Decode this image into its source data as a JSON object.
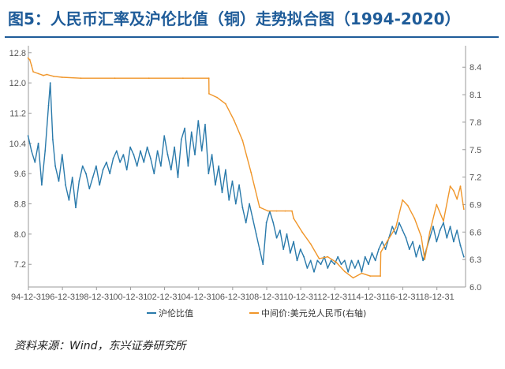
{
  "title": "图5：人民币汇率及沪伦比值（铜）走势拟合图（1994-2020）",
  "source": "资料来源：Wind，东兴证券研究所",
  "colors": {
    "title": "#1f5c99",
    "ratio": "#2a7aab",
    "fx": "#f0962a",
    "axis": "#9a9a9a"
  },
  "chart_data": {
    "type": "line",
    "title": "",
    "x_ticks": [
      "94-12-31",
      "96-12-31",
      "98-12-31",
      "00-12-31",
      "02-12-31",
      "04-12-31",
      "06-12-31",
      "08-12-31",
      "10-12-31",
      "12-12-31",
      "14-12-31",
      "16-12-31",
      "18-12-31"
    ],
    "x_range": [
      1994.917,
      2020.6
    ],
    "y_left": {
      "ticks": [
        "12.8",
        "12.0",
        "11.2",
        "10.4",
        "9.6",
        "8.8",
        "8.0",
        "7.2"
      ],
      "range": [
        6.6,
        12.9
      ]
    },
    "y_right": {
      "ticks": [
        "8.4",
        "8.1",
        "7.8",
        "7.5",
        "7.2",
        "6.9",
        "6.6",
        "6.3",
        "6.0"
      ],
      "range": [
        6.0,
        8.6
      ]
    },
    "legend_placement": "bottom",
    "grid": false,
    "series": [
      {
        "name": "沪伦比值",
        "axis": "left",
        "color": "#2a7aab",
        "points": [
          [
            1994.9,
            10.6
          ],
          [
            1995.1,
            10.2
          ],
          [
            1995.3,
            9.9
          ],
          [
            1995.5,
            10.4
          ],
          [
            1995.7,
            9.3
          ],
          [
            1995.9,
            10.2
          ],
          [
            1996.1,
            11.4
          ],
          [
            1996.2,
            12.0
          ],
          [
            1996.35,
            10.5
          ],
          [
            1996.5,
            9.8
          ],
          [
            1996.7,
            9.4
          ],
          [
            1996.9,
            10.1
          ],
          [
            1997.1,
            9.3
          ],
          [
            1997.3,
            8.9
          ],
          [
            1997.5,
            9.5
          ],
          [
            1997.7,
            8.7
          ],
          [
            1997.9,
            9.4
          ],
          [
            1998.1,
            9.8
          ],
          [
            1998.3,
            9.6
          ],
          [
            1998.5,
            9.2
          ],
          [
            1998.7,
            9.5
          ],
          [
            1998.9,
            9.8
          ],
          [
            1999.1,
            9.3
          ],
          [
            1999.3,
            9.7
          ],
          [
            1999.5,
            9.9
          ],
          [
            1999.7,
            9.6
          ],
          [
            1999.9,
            10.0
          ],
          [
            2000.1,
            10.2
          ],
          [
            2000.3,
            9.9
          ],
          [
            2000.5,
            10.1
          ],
          [
            2000.7,
            9.7
          ],
          [
            2000.9,
            10.3
          ],
          [
            2001.1,
            10.1
          ],
          [
            2001.3,
            9.8
          ],
          [
            2001.5,
            10.2
          ],
          [
            2001.7,
            9.9
          ],
          [
            2001.9,
            10.3
          ],
          [
            2002.1,
            10.0
          ],
          [
            2002.3,
            9.6
          ],
          [
            2002.5,
            10.2
          ],
          [
            2002.7,
            9.8
          ],
          [
            2002.9,
            10.6
          ],
          [
            2003.1,
            10.1
          ],
          [
            2003.3,
            9.7
          ],
          [
            2003.5,
            10.3
          ],
          [
            2003.7,
            9.5
          ],
          [
            2003.9,
            10.5
          ],
          [
            2004.1,
            10.8
          ],
          [
            2004.3,
            9.8
          ],
          [
            2004.5,
            10.7
          ],
          [
            2004.7,
            10.1
          ],
          [
            2004.9,
            11.0
          ],
          [
            2005.1,
            10.2
          ],
          [
            2005.3,
            10.9
          ],
          [
            2005.5,
            9.6
          ],
          [
            2005.7,
            10.1
          ],
          [
            2005.9,
            9.3
          ],
          [
            2006.1,
            9.8
          ],
          [
            2006.3,
            9.1
          ],
          [
            2006.5,
            9.7
          ],
          [
            2006.7,
            8.9
          ],
          [
            2006.9,
            9.4
          ],
          [
            2007.1,
            8.8
          ],
          [
            2007.3,
            9.3
          ],
          [
            2007.5,
            8.7
          ],
          [
            2007.7,
            8.3
          ],
          [
            2007.9,
            8.8
          ],
          [
            2008.1,
            8.4
          ],
          [
            2008.3,
            8.0
          ],
          [
            2008.5,
            7.6
          ],
          [
            2008.7,
            7.2
          ],
          [
            2008.9,
            8.3
          ],
          [
            2009.1,
            8.6
          ],
          [
            2009.3,
            8.3
          ],
          [
            2009.5,
            7.9
          ],
          [
            2009.7,
            8.1
          ],
          [
            2009.9,
            7.6
          ],
          [
            2010.1,
            8.0
          ],
          [
            2010.3,
            7.5
          ],
          [
            2010.5,
            7.8
          ],
          [
            2010.7,
            7.3
          ],
          [
            2010.9,
            7.6
          ],
          [
            2011.1,
            7.4
          ],
          [
            2011.3,
            7.1
          ],
          [
            2011.5,
            7.3
          ],
          [
            2011.7,
            7.0
          ],
          [
            2011.9,
            7.3
          ],
          [
            2012.1,
            7.2
          ],
          [
            2012.3,
            7.4
          ],
          [
            2012.5,
            7.1
          ],
          [
            2012.7,
            7.3
          ],
          [
            2012.9,
            7.2
          ],
          [
            2013.1,
            7.4
          ],
          [
            2013.3,
            7.2
          ],
          [
            2013.5,
            7.3
          ],
          [
            2013.7,
            7.0
          ],
          [
            2013.9,
            7.3
          ],
          [
            2014.1,
            7.1
          ],
          [
            2014.3,
            7.3
          ],
          [
            2014.5,
            7.0
          ],
          [
            2014.7,
            7.4
          ],
          [
            2014.9,
            7.2
          ],
          [
            2015.1,
            7.5
          ],
          [
            2015.3,
            7.3
          ],
          [
            2015.5,
            7.6
          ],
          [
            2015.7,
            7.8
          ],
          [
            2015.9,
            7.6
          ],
          [
            2016.1,
            7.9
          ],
          [
            2016.3,
            8.2
          ],
          [
            2016.5,
            8.0
          ],
          [
            2016.7,
            8.3
          ],
          [
            2016.9,
            8.1
          ],
          [
            2017.1,
            7.9
          ],
          [
            2017.3,
            7.6
          ],
          [
            2017.5,
            7.8
          ],
          [
            2017.7,
            7.4
          ],
          [
            2017.9,
            7.7
          ],
          [
            2018.1,
            7.3
          ],
          [
            2018.3,
            7.6
          ],
          [
            2018.5,
            7.9
          ],
          [
            2018.7,
            8.2
          ],
          [
            2018.9,
            7.8
          ],
          [
            2019.1,
            8.1
          ],
          [
            2019.3,
            8.3
          ],
          [
            2019.5,
            7.9
          ],
          [
            2019.7,
            8.2
          ],
          [
            2019.9,
            7.8
          ],
          [
            2020.1,
            8.1
          ],
          [
            2020.3,
            7.7
          ],
          [
            2020.5,
            7.4
          ]
        ]
      },
      {
        "name": "中间价:美元兑人民币(右轴)",
        "axis": "right",
        "color": "#f0962a",
        "points": [
          [
            1994.9,
            8.5
          ],
          [
            1995.0,
            8.48
          ],
          [
            1995.1,
            8.42
          ],
          [
            1995.2,
            8.35
          ],
          [
            1995.5,
            8.33
          ],
          [
            1995.8,
            8.31
          ],
          [
            1996.0,
            8.32
          ],
          [
            1996.4,
            8.3
          ],
          [
            1996.9,
            8.29
          ],
          [
            1998.0,
            8.28
          ],
          [
            2000.0,
            8.28
          ],
          [
            2002.0,
            8.28
          ],
          [
            2004.0,
            8.28
          ],
          [
            2005.52,
            8.28
          ],
          [
            2005.53,
            8.11
          ],
          [
            2006.0,
            8.07
          ],
          [
            2006.5,
            8.0
          ],
          [
            2007.0,
            7.82
          ],
          [
            2007.5,
            7.6
          ],
          [
            2008.0,
            7.25
          ],
          [
            2008.5,
            6.87
          ],
          [
            2009.0,
            6.83
          ],
          [
            2009.5,
            6.83
          ],
          [
            2010.0,
            6.83
          ],
          [
            2010.4,
            6.83
          ],
          [
            2010.5,
            6.75
          ],
          [
            2011.0,
            6.6
          ],
          [
            2011.5,
            6.47
          ],
          [
            2012.0,
            6.31
          ],
          [
            2012.5,
            6.33
          ],
          [
            2013.0,
            6.27
          ],
          [
            2013.5,
            6.17
          ],
          [
            2014.0,
            6.1
          ],
          [
            2014.5,
            6.15
          ],
          [
            2015.0,
            6.12
          ],
          [
            2015.6,
            6.12
          ],
          [
            2015.62,
            6.38
          ],
          [
            2016.0,
            6.5
          ],
          [
            2016.5,
            6.65
          ],
          [
            2016.9,
            6.95
          ],
          [
            2017.2,
            6.89
          ],
          [
            2017.6,
            6.75
          ],
          [
            2018.0,
            6.55
          ],
          [
            2018.2,
            6.3
          ],
          [
            2018.5,
            6.6
          ],
          [
            2018.9,
            6.9
          ],
          [
            2019.3,
            6.72
          ],
          [
            2019.7,
            7.1
          ],
          [
            2019.9,
            7.05
          ],
          [
            2020.1,
            6.96
          ],
          [
            2020.3,
            7.1
          ],
          [
            2020.5,
            6.85
          ]
        ]
      }
    ]
  }
}
